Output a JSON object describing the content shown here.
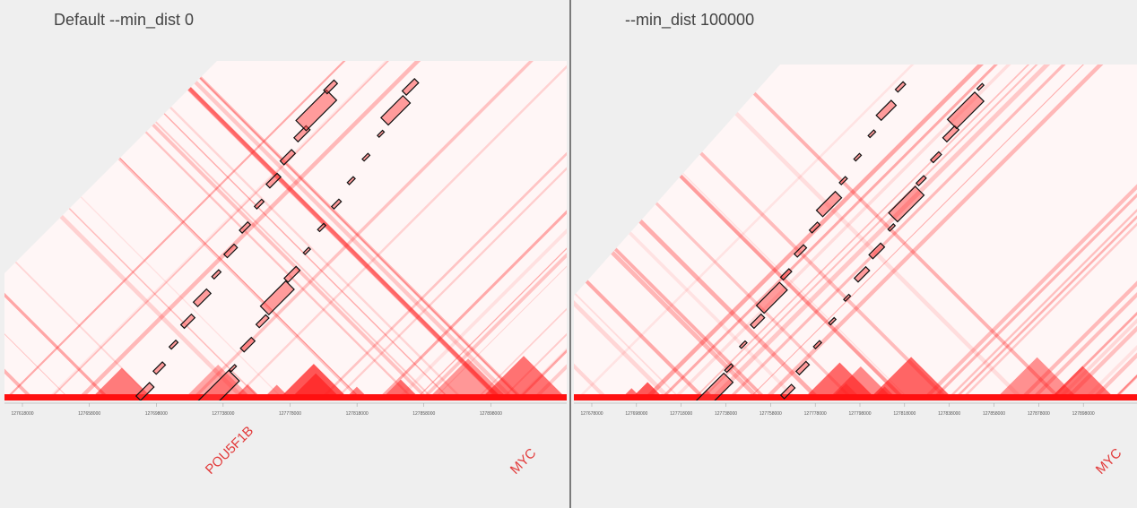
{
  "panels": [
    {
      "title": "Default --min_dist 0",
      "ticks": [
        "127618000",
        "127658000",
        "127698000",
        "127738000",
        "127778000",
        "127818000",
        "127858000",
        "127898000"
      ],
      "genes": [
        "POU5F1B",
        "MYC"
      ]
    },
    {
      "title": "--min_dist 100000",
      "ticks": [
        "127678000",
        "127698000",
        "127718000",
        "127738000",
        "127758000",
        "127778000",
        "127798000",
        "127818000",
        "127838000",
        "127858000",
        "127878000",
        "127898000"
      ],
      "genes": [
        "MYC"
      ]
    }
  ]
}
